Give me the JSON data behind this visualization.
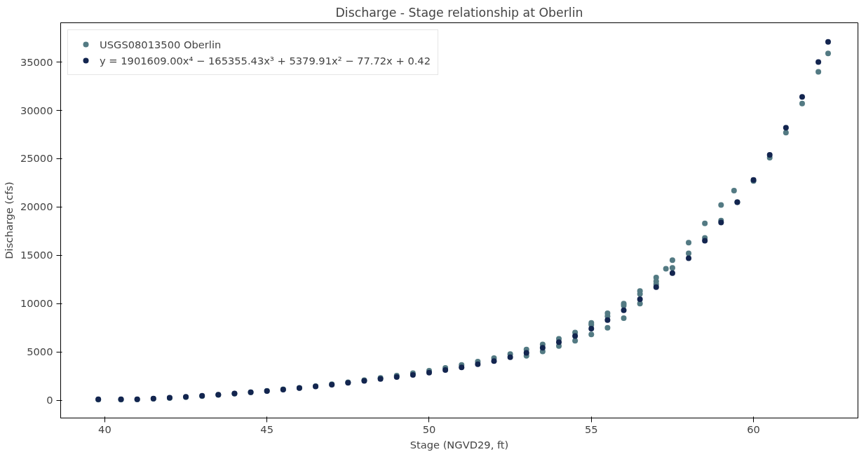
{
  "chart_data": {
    "type": "scatter",
    "title": "Discharge - Stage relationship at Oberlin",
    "xlabel": "Stage (NGVD29, ft)",
    "ylabel": "Discharge (cfs)",
    "xlim": [
      38.64,
      63.22
    ],
    "ylim": [
      -1846,
      39070
    ],
    "xticks": [
      40,
      45,
      50,
      55,
      60
    ],
    "yticks": [
      0,
      5000,
      10000,
      15000,
      20000,
      25000,
      30000,
      35000
    ],
    "grid": false,
    "legend": "top left",
    "marker": "circle",
    "series": [
      {
        "name": "USGS08013500 Oberlin",
        "color": "#537a83",
        "x": [
          39.8,
          40.5,
          41,
          41.5,
          42,
          42.5,
          43,
          43.5,
          44,
          44.5,
          45,
          45.5,
          46,
          46.5,
          47,
          47.5,
          48,
          48.5,
          49,
          49.5,
          50,
          50.5,
          51,
          51.5,
          52,
          52.5,
          53,
          53.5,
          54,
          54.5,
          55,
          55.5,
          56,
          56.5,
          57,
          57.5,
          58,
          58.5,
          59,
          59.5,
          60,
          60.5,
          61,
          61.5,
          62,
          62.3,
          55,
          55.5,
          56,
          56.5,
          57,
          57.3,
          57.5,
          58,
          58.5,
          59,
          59.4,
          53,
          53.5,
          54,
          54.5,
          55,
          55.5,
          56,
          56.5,
          57
        ],
        "values": [
          50,
          60,
          80,
          150,
          220,
          320,
          430,
          550,
          680,
          820,
          960,
          1120,
          1280,
          1460,
          1650,
          1860,
          2080,
          2310,
          2550,
          2790,
          3050,
          3340,
          3650,
          3990,
          4350,
          4780,
          5250,
          5770,
          6350,
          7000,
          7800,
          8700,
          9800,
          11000,
          12300,
          13700,
          15200,
          16800,
          18600,
          20500,
          22700,
          25100,
          27700,
          30700,
          34000,
          35900,
          8000,
          9000,
          10000,
          11300,
          12700,
          13600,
          14500,
          16300,
          18300,
          20200,
          21700,
          4600,
          5050,
          5600,
          6150,
          6800,
          7500,
          8500,
          10000,
          12000
        ]
      },
      {
        "name": "y = 1901609.00x⁴ − 165355.43x³ + 5379.91x² − 77.72x + 0.42",
        "color": "#13254f",
        "x": [
          39.8,
          40.5,
          41,
          41.5,
          42,
          42.5,
          43,
          43.5,
          44,
          44.5,
          45,
          45.5,
          46,
          46.5,
          47,
          47.5,
          48,
          48.5,
          49,
          49.5,
          50,
          50.5,
          51,
          51.5,
          52,
          52.5,
          53,
          53.5,
          54,
          54.5,
          55,
          55.5,
          56,
          56.5,
          57,
          57.5,
          58,
          58.5,
          59,
          59.5,
          60,
          60.5,
          61,
          61.5,
          62,
          62.3
        ],
        "values": [
          100,
          90,
          100,
          170,
          250,
          340,
          450,
          570,
          700,
          820,
          950,
          1100,
          1250,
          1420,
          1600,
          1800,
          2000,
          2200,
          2400,
          2620,
          2850,
          3120,
          3400,
          3720,
          4050,
          4450,
          4900,
          5420,
          6000,
          6650,
          7400,
          8300,
          9300,
          10450,
          11700,
          13150,
          14700,
          16500,
          18400,
          20500,
          22800,
          25400,
          28200,
          31400,
          35000,
          37100
        ]
      }
    ]
  }
}
